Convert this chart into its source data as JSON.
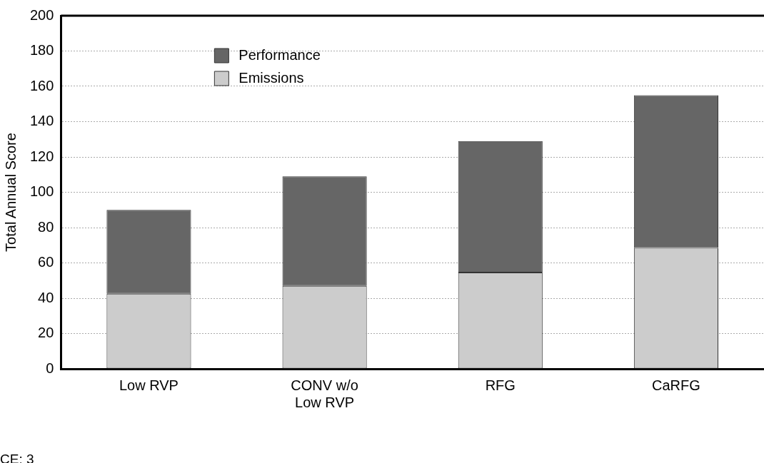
{
  "chart_data": {
    "type": "bar",
    "stacked": true,
    "ylabel": "Total Annual Score",
    "categories": [
      "Low RVP",
      "CONV w/o\nLow RVP",
      "RFG",
      "CaRFG"
    ],
    "series": [
      {
        "name": "Emissions",
        "color": "#cccccc",
        "values": [
          42.5,
          47,
          54.5,
          68.5
        ]
      },
      {
        "name": "Performance",
        "color": "#666666",
        "values": [
          47.5,
          62,
          74.5,
          86.5
        ]
      }
    ],
    "ylim": [
      0,
      200
    ],
    "yticks": [
      0,
      20,
      40,
      60,
      80,
      100,
      120,
      140,
      160,
      180,
      200
    ],
    "grid": "y",
    "legend": "top left",
    "annotations": [
      "CE: 3"
    ]
  }
}
